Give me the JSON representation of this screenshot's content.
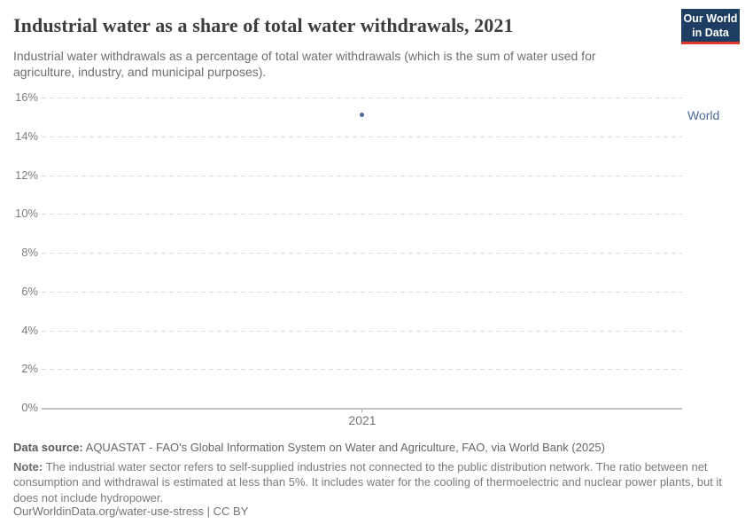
{
  "header": {
    "title": "Industrial water as a share of total water withdrawals, 2021",
    "subtitle": "Industrial water withdrawals as a percentage of total water withdrawals (which is the sum of water used for agriculture, industry, and municipal purposes).",
    "logo": {
      "line1": "Our World",
      "line2": "in Data"
    }
  },
  "chart_data": {
    "type": "scatter",
    "title": "Industrial water as a share of total water withdrawals, 2021",
    "series": [
      {
        "name": "World",
        "x": [
          2021
        ],
        "y": [
          15.1
        ],
        "color": "#4c6a9c"
      }
    ],
    "x_ticks": [
      "2021"
    ],
    "x_tick_label": "2021",
    "y_ticks": [
      "0%",
      "2%",
      "4%",
      "6%",
      "8%",
      "10%",
      "12%",
      "14%",
      "16%"
    ],
    "y_tick_values": [
      0,
      2,
      4,
      6,
      8,
      10,
      12,
      14,
      16
    ],
    "ylim": [
      0,
      16
    ],
    "grid": "horizontal-dashed",
    "legend_position": "right"
  },
  "footer": {
    "source_label": "Data source:",
    "source_text": " AQUASTAT - FAO's Global Information System on Water and Agriculture, FAO, via World Bank (2025)",
    "note_label": "Note:",
    "note_text": " The industrial water sector refers to self-supplied industries not connected to the public distribution network. The ratio between net consumption and withdrawal is estimated at less than 5%. It includes water for the cooling of thermoelectric and nuclear power plants, but it does not include hydropower.",
    "citation": "OurWorldinData.org/water-use-stress | CC BY"
  },
  "colors": {
    "accent_blue": "#4c6a9c",
    "logo_background": "#1d3d63",
    "logo_red": "#e0362c",
    "gridline": "#dcdcdc",
    "axis_line": "#c2c2c2",
    "title_text": "#3d3d3d",
    "muted_text": "#6e6e6e"
  }
}
